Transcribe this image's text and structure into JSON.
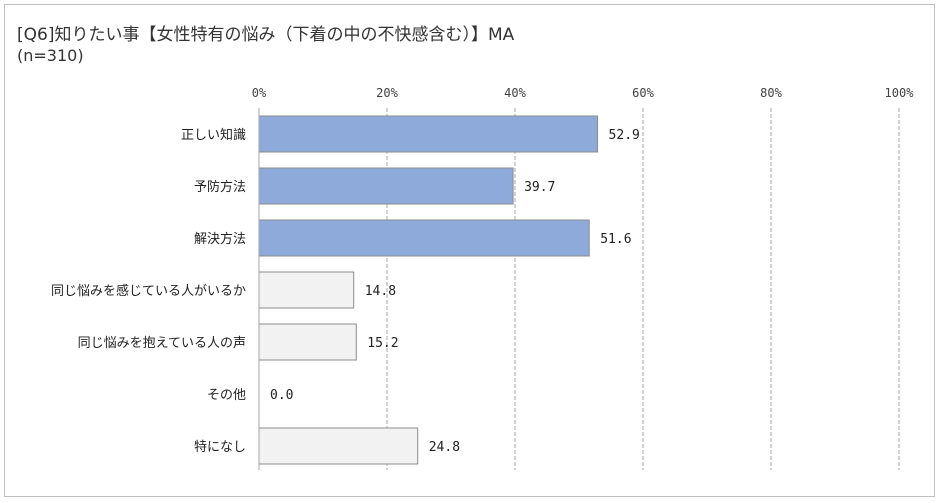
{
  "chart_data": {
    "type": "bar",
    "orientation": "horizontal",
    "title": "[Q6]知りたい事【女性特有の悩み（下着の中の不快感含む）】MA",
    "subtitle": "(n=310)",
    "xlim": [
      0,
      100
    ],
    "x_ticks": [
      "0%",
      "20%",
      "40%",
      "60%",
      "80%",
      "100%"
    ],
    "grid": true,
    "categories": [
      "正しい知識",
      "予防方法",
      "解決方法",
      "同じ悩みを感じている人がいるか",
      "同じ悩みを抱えている人の声",
      "その他",
      "特になし"
    ],
    "values": [
      52.9,
      39.7,
      51.6,
      14.8,
      15.2,
      0.0,
      24.8
    ],
    "value_labels": [
      "52.9",
      "39.7",
      "51.6",
      "14.8",
      "15.2",
      "0.0",
      "24.8"
    ],
    "bar_colors": [
      "#8eaadb",
      "#8eaadb",
      "#8eaadb",
      "#f2f2f2",
      "#f2f2f2",
      "#f2f2f2",
      "#f2f2f2"
    ],
    "bar_border": "#8c8c8c"
  }
}
